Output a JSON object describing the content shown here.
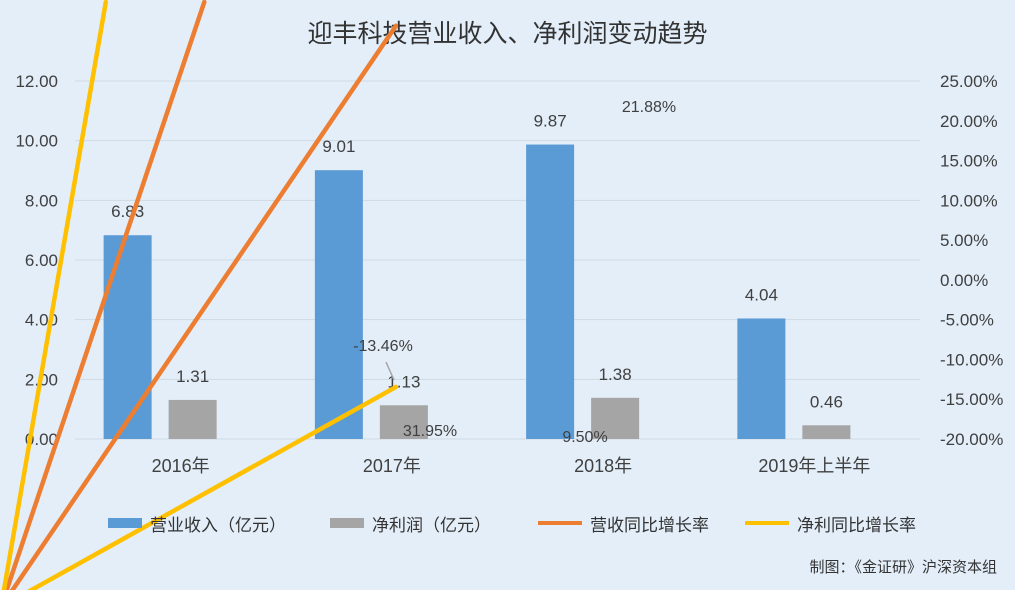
{
  "title": "迎丰科技营业收入、净利润变动趋势",
  "credit": "制图：《金证研》沪深资本组",
  "colors": {
    "revenue": "#5b9bd5",
    "profit": "#a5a5a5",
    "revenue_growth": "#ed7d31",
    "profit_growth": "#ffc000",
    "grid": "#d0d9e2",
    "background": "#e3eef9"
  },
  "chart_data": {
    "type": "bar",
    "categories": [
      "2016年",
      "2017年",
      "2018年",
      "2019年上半年"
    ],
    "series": [
      {
        "name": "营业收入（亿元）",
        "type": "bar",
        "axis": "left",
        "values": [
          6.83,
          9.01,
          9.87,
          4.04
        ],
        "labels": [
          "6.83",
          "9.01",
          "9.87",
          "4.04"
        ]
      },
      {
        "name": "净利润（亿元）",
        "type": "bar",
        "axis": "left",
        "values": [
          1.31,
          1.13,
          1.38,
          0.46
        ],
        "labels": [
          "1.31",
          "1.13",
          "1.38",
          "0.46"
        ]
      },
      {
        "name": "营收同比增长率",
        "type": "line",
        "axis": "right",
        "values": [
          null,
          31.95,
          9.5,
          null
        ],
        "labels": [
          "",
          "31.95%",
          "9.50%",
          ""
        ]
      },
      {
        "name": "净利同比增长率",
        "type": "line",
        "axis": "right",
        "values": [
          null,
          -13.46,
          21.88,
          null
        ],
        "labels": [
          "",
          "-13.46%",
          "21.88%",
          ""
        ]
      }
    ],
    "ylim": [
      0,
      12
    ],
    "yticks": [
      "0.00",
      "2.00",
      "4.00",
      "6.00",
      "8.00",
      "10.00",
      "12.00"
    ],
    "y2lim": [
      -20,
      25
    ],
    "y2ticks": [
      "-20.00%",
      "-15.00%",
      "-10.00%",
      "-5.00%",
      "0.00%",
      "5.00%",
      "10.00%",
      "15.00%",
      "20.00%",
      "25.00%"
    ],
    "grid": true,
    "legend": "bottom"
  }
}
